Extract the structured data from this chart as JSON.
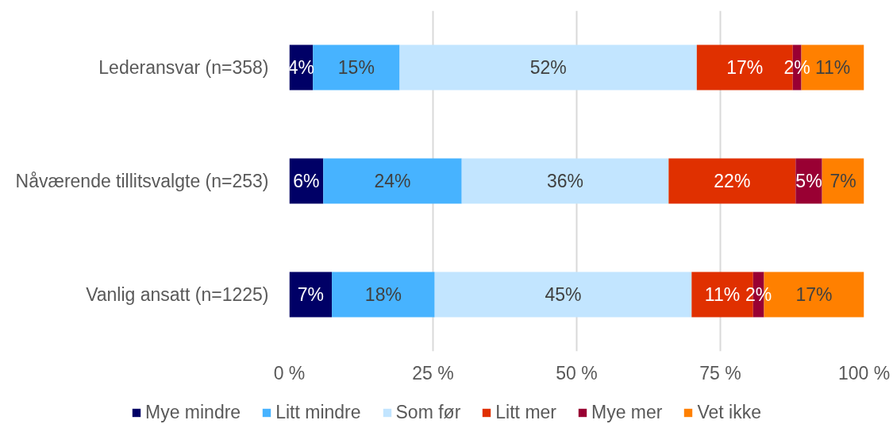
{
  "chart_data": {
    "type": "bar",
    "orientation": "horizontal",
    "stacked": true,
    "categories": [
      "Lederansvar (n=358)",
      "Nåværende tillitsvalgte (n=253)",
      "Vanlig ansatt (n=1225)"
    ],
    "series": [
      {
        "name": "Mye mindre",
        "color": "#000066",
        "values": [
          4.1,
          5.9,
          7.4
        ],
        "value_labels": [
          "4%",
          "6%",
          "7%"
        ]
      },
      {
        "name": "Litt mindre",
        "color": "#47b3ff",
        "values": [
          15.1,
          24.1,
          17.9
        ],
        "value_labels": [
          "15%",
          "24%",
          "18%"
        ]
      },
      {
        "name": "Som før",
        "color": "#c2e5ff",
        "values": [
          51.7,
          36.0,
          44.7
        ],
        "value_labels": [
          "52%",
          "36%",
          "45%"
        ]
      },
      {
        "name": "Litt mer",
        "color": "#e03000",
        "values": [
          16.7,
          22.1,
          10.7
        ],
        "value_labels": [
          "17%",
          "22%",
          "11%"
        ]
      },
      {
        "name": "Mye mer",
        "color": "#990033",
        "values": [
          1.5,
          4.6,
          1.9
        ],
        "value_labels": [
          "2%",
          "5%",
          "2%"
        ]
      },
      {
        "name": "Vet ikke",
        "color": "#ff8000",
        "values": [
          10.9,
          7.3,
          17.4
        ],
        "value_labels": [
          "11%",
          "7%",
          "17%"
        ]
      }
    ],
    "xlim": [
      0,
      100
    ],
    "xticks": [
      {
        "value": 0,
        "label": "0 %"
      },
      {
        "value": 25,
        "label": "25 %"
      },
      {
        "value": 50,
        "label": "50 %"
      },
      {
        "value": 75,
        "label": "75 %"
      },
      {
        "value": 100,
        "label": "100 %"
      }
    ],
    "grid": "x",
    "legend": "bottom"
  }
}
